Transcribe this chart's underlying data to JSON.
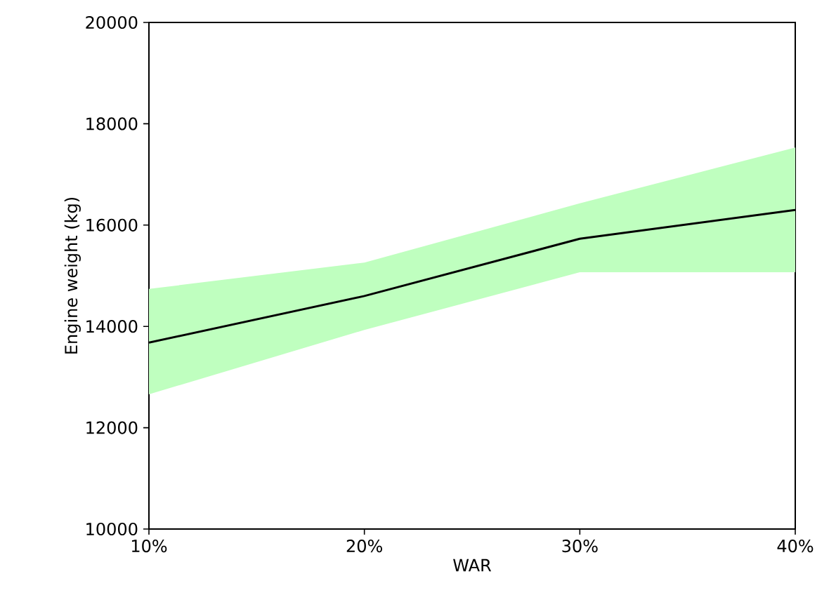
{
  "chart_data": {
    "type": "line",
    "xlabel": "WAR",
    "ylabel": "Engine weight (kg)",
    "x": [
      10,
      20,
      30,
      40
    ],
    "series": [
      {
        "color": "#000000",
        "values": [
          13680,
          14600,
          15730,
          16300
        ],
        "lower": [
          12660,
          13930,
          15070,
          15070
        ],
        "upper": [
          14740,
          15260,
          16430,
          17530
        ]
      }
    ],
    "xlim": [
      10,
      40
    ],
    "xticks": [
      {
        "value": 10,
        "label": "10%"
      },
      {
        "value": 20,
        "label": "20%"
      },
      {
        "value": 30,
        "label": "30%"
      },
      {
        "value": 40,
        "label": "40%"
      }
    ],
    "ylim": [
      10000,
      20000
    ],
    "yticks": [
      10000,
      12000,
      14000,
      16000,
      18000,
      20000
    ],
    "grid": false,
    "marker": "none",
    "line_style": "solid"
  }
}
